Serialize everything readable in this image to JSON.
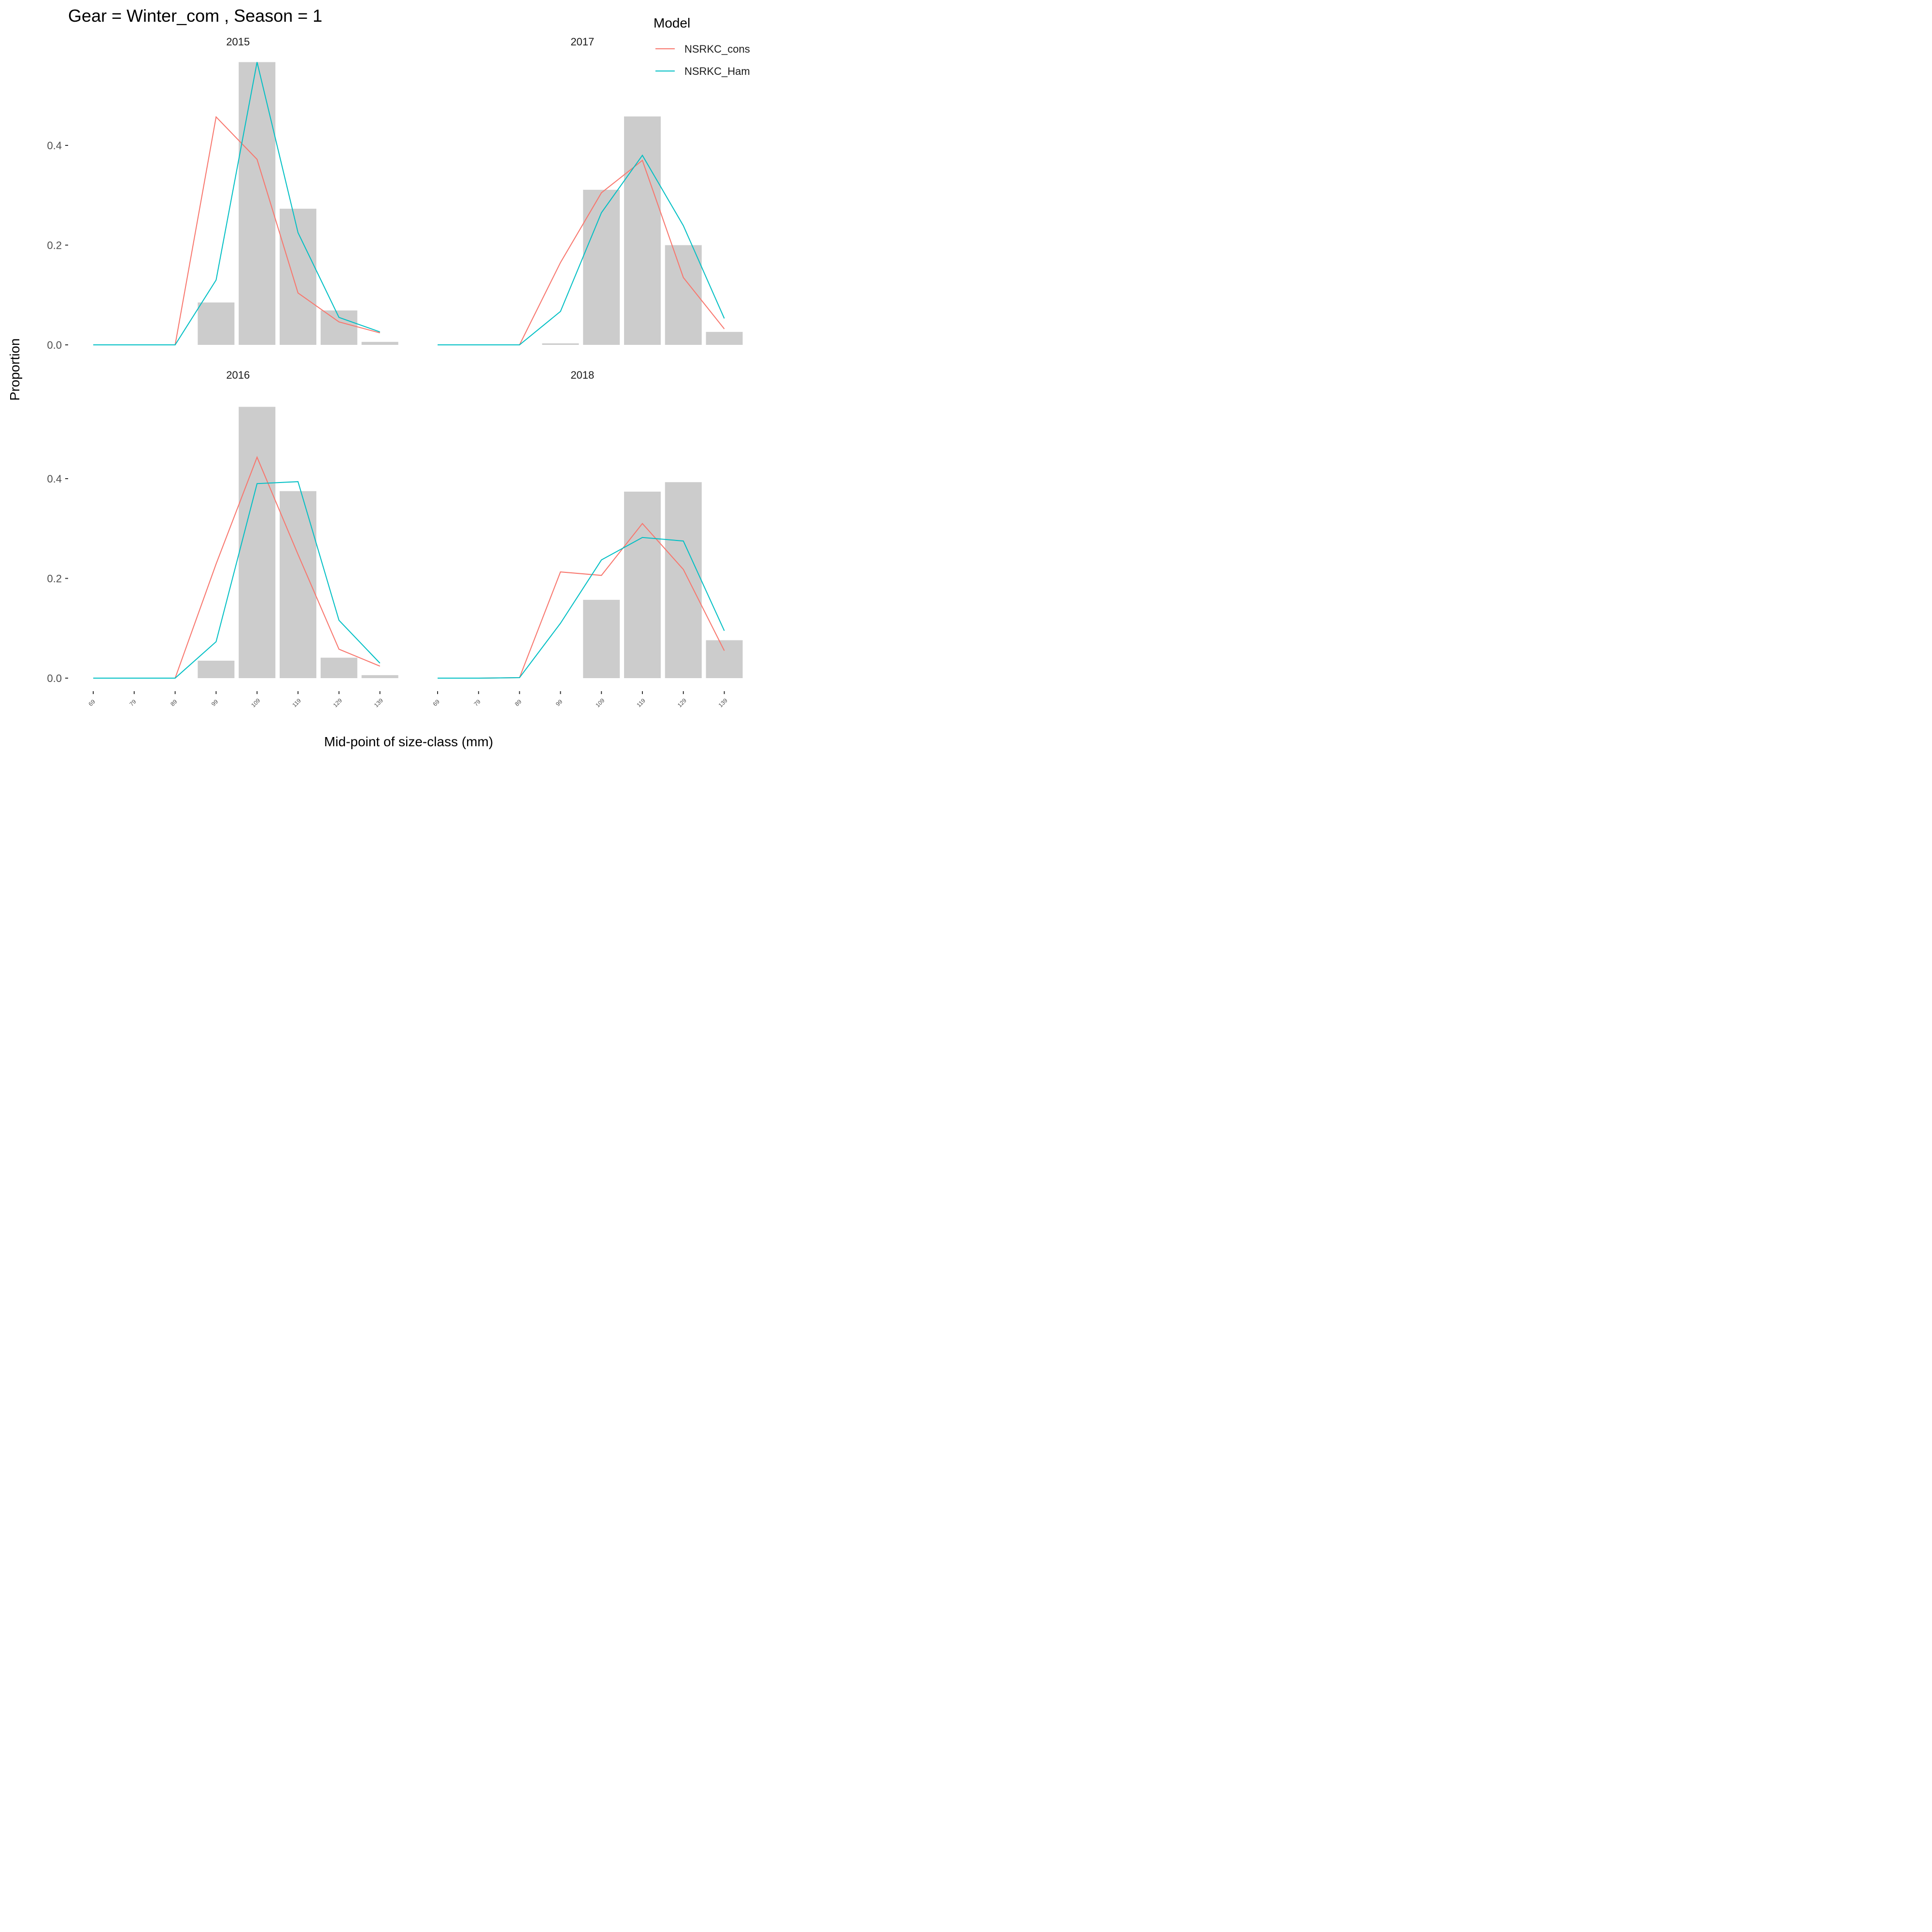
{
  "chart_data": {
    "type": "bar",
    "title": "Gear = Winter_com , Season = 1",
    "xlabel": "Mid-point of size-class (mm)",
    "ylabel": "Proportion",
    "ylim": [
      0,
      0.57
    ],
    "y_ticks": [
      0.0,
      0.2,
      0.4
    ],
    "y_tick_labels": [
      "0.0",
      "0.2",
      "0.4"
    ],
    "x_ticks": [
      69,
      79,
      89,
      99,
      109,
      119,
      129,
      139
    ],
    "x_tick_labels": [
      "69",
      "79",
      "89",
      "99",
      "109",
      "119",
      "129",
      "139"
    ],
    "grid": false,
    "legend": {
      "title": "Model",
      "position": "top-right",
      "entries": [
        {
          "name": "NSRKC_cons",
          "color": "#F8766D"
        },
        {
          "name": "NSRKC_Ham",
          "color": "#00BFC4"
        }
      ]
    },
    "bar_color": "#cccccc",
    "panels": [
      {
        "label": "2015",
        "observed": [
          0,
          0,
          0,
          0.085,
          0.567,
          0.273,
          0.069,
          0.006
        ],
        "series": [
          {
            "name": "NSRKC_cons",
            "values": [
              0,
              0,
              0,
              0.457,
              0.372,
              0.104,
              0.046,
              0.024
            ]
          },
          {
            "name": "NSRKC_Ham",
            "values": [
              0,
              0,
              0,
              0.13,
              0.567,
              0.225,
              0.055,
              0.026
            ]
          }
        ]
      },
      {
        "label": "2017",
        "observed": [
          0,
          0,
          0,
          0.003,
          0.311,
          0.458,
          0.2,
          0.026
        ],
        "series": [
          {
            "name": "NSRKC_cons",
            "values": [
              0,
              0,
              0,
              0.165,
              0.305,
              0.37,
              0.135,
              0.032
            ]
          },
          {
            "name": "NSRKC_Ham",
            "values": [
              0,
              0,
              0,
              0.067,
              0.265,
              0.38,
              0.239,
              0.053
            ]
          }
        ]
      },
      {
        "label": "2016",
        "observed": [
          0,
          0,
          0,
          0.035,
          0.544,
          0.375,
          0.041,
          0.006
        ],
        "series": [
          {
            "name": "NSRKC_cons",
            "values": [
              0,
              0,
              0,
              0.229,
              0.443,
              0.248,
              0.058,
              0.024
            ]
          },
          {
            "name": "NSRKC_Ham",
            "values": [
              0,
              0,
              0,
              0.073,
              0.39,
              0.394,
              0.116,
              0.03
            ]
          }
        ]
      },
      {
        "label": "2018",
        "observed": [
          0,
          0,
          0,
          0,
          0.157,
          0.374,
          0.393,
          0.076
        ],
        "series": [
          {
            "name": "NSRKC_cons",
            "values": [
              0,
              0,
              0.001,
              0.213,
              0.206,
              0.31,
              0.218,
              0.055
            ]
          },
          {
            "name": "NSRKC_Ham",
            "values": [
              0,
              0,
              0.001,
              0.11,
              0.237,
              0.282,
              0.275,
              0.095
            ]
          }
        ]
      }
    ]
  }
}
